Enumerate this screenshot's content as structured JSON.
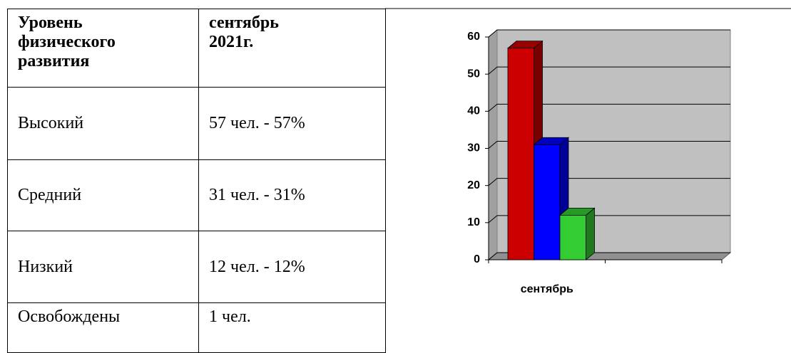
{
  "table": {
    "header": [
      "Уровень физического развития",
      "сентябрь 2021г."
    ],
    "rows": [
      [
        "Высокий",
        "57 чел. - 57%"
      ],
      [
        "Средний",
        "31 чел. - 31%"
      ],
      [
        "Низкий",
        "12 чел. - 12%"
      ],
      [
        "Освобождены",
        "1 чел."
      ]
    ]
  },
  "chart_data": {
    "type": "bar",
    "categories": [
      "сентябрь",
      null
    ],
    "series": [
      {
        "color": "#cc0000",
        "values": [
          57,
          null
        ]
      },
      {
        "color": "#0000ff",
        "values": [
          31,
          null
        ]
      },
      {
        "color": "#33cc33",
        "values": [
          12,
          null
        ]
      }
    ],
    "ylim": [
      0,
      60
    ],
    "yticks": [
      0,
      10,
      20,
      30,
      40,
      50,
      60
    ],
    "grid": true
  }
}
